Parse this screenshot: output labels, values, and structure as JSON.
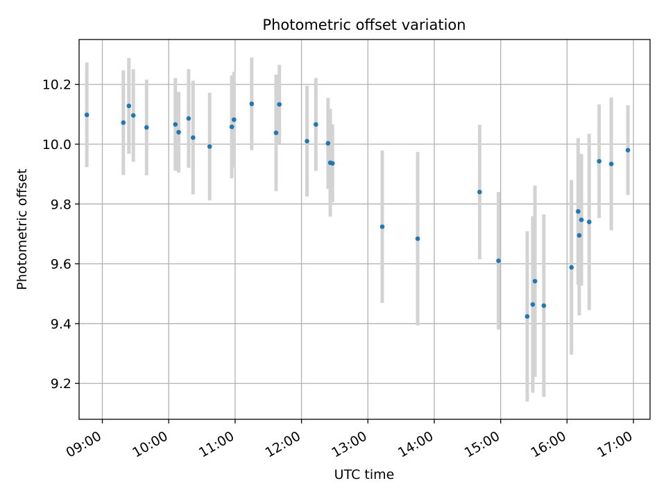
{
  "chart_data": {
    "type": "scatter",
    "title": "Photometric offset variation",
    "xlabel": "UTC time",
    "ylabel": "Photometric offset",
    "xlim": [
      "08:39",
      "17:15"
    ],
    "ylim": [
      9.08,
      10.35
    ],
    "xticks": [
      "09:00",
      "10:00",
      "11:00",
      "12:00",
      "13:00",
      "14:00",
      "15:00",
      "16:00",
      "17:00"
    ],
    "yticks": [
      "9.2",
      "9.4",
      "9.6",
      "9.8",
      "10.0",
      "10.2"
    ],
    "grid": true,
    "colors": {
      "points": "#1f77b4",
      "errorbars": "#d3d3d3",
      "grid": "#b0b0b0"
    },
    "series": [
      {
        "points": [
          {
            "x": "08:46",
            "y": 10.098,
            "err": 0.175
          },
          {
            "x": "09:19",
            "y": 10.072,
            "err": 0.175
          },
          {
            "x": "09:24",
            "y": 10.128,
            "err": 0.16
          },
          {
            "x": "09:28",
            "y": 10.096,
            "err": 0.155
          },
          {
            "x": "09:40",
            "y": 10.056,
            "err": 0.16
          },
          {
            "x": "10:06",
            "y": 10.066,
            "err": 0.155
          },
          {
            "x": "10:09",
            "y": 10.04,
            "err": 0.135
          },
          {
            "x": "10:18",
            "y": 10.086,
            "err": 0.165
          },
          {
            "x": "10:22",
            "y": 10.022,
            "err": 0.19
          },
          {
            "x": "10:37",
            "y": 9.992,
            "err": 0.18
          },
          {
            "x": "10:57",
            "y": 10.058,
            "err": 0.172
          },
          {
            "x": "10:59",
            "y": 10.082,
            "err": 0.16
          },
          {
            "x": "11:15",
            "y": 10.135,
            "err": 0.155
          },
          {
            "x": "11:37",
            "y": 10.038,
            "err": 0.195
          },
          {
            "x": "11:40",
            "y": 10.133,
            "err": 0.132
          },
          {
            "x": "12:05",
            "y": 10.01,
            "err": 0.185
          },
          {
            "x": "12:13",
            "y": 10.066,
            "err": 0.155
          },
          {
            "x": "12:24",
            "y": 10.003,
            "err": 0.152
          },
          {
            "x": "12:26",
            "y": 9.938,
            "err": 0.18
          },
          {
            "x": "12:28",
            "y": 9.936,
            "err": 0.13
          },
          {
            "x": "13:13",
            "y": 9.724,
            "err": 0.255
          },
          {
            "x": "13:45",
            "y": 9.684,
            "err": 0.29
          },
          {
            "x": "14:41",
            "y": 9.84,
            "err": 0.225
          },
          {
            "x": "14:58",
            "y": 9.61,
            "err": 0.23
          },
          {
            "x": "15:24",
            "y": 9.424,
            "err": 0.285
          },
          {
            "x": "15:29",
            "y": 9.464,
            "err": 0.295
          },
          {
            "x": "15:31",
            "y": 9.542,
            "err": 0.32
          },
          {
            "x": "15:39",
            "y": 9.46,
            "err": 0.305
          },
          {
            "x": "16:04",
            "y": 9.588,
            "err": 0.292
          },
          {
            "x": "16:10",
            "y": 9.775,
            "err": 0.245
          },
          {
            "x": "16:11",
            "y": 9.695,
            "err": 0.268
          },
          {
            "x": "16:13",
            "y": 9.747,
            "err": 0.22
          },
          {
            "x": "16:20",
            "y": 9.74,
            "err": 0.295
          },
          {
            "x": "16:29",
            "y": 9.943,
            "err": 0.19
          },
          {
            "x": "16:40",
            "y": 9.934,
            "err": 0.222
          },
          {
            "x": "16:55",
            "y": 9.98,
            "err": 0.15
          }
        ]
      }
    ]
  }
}
